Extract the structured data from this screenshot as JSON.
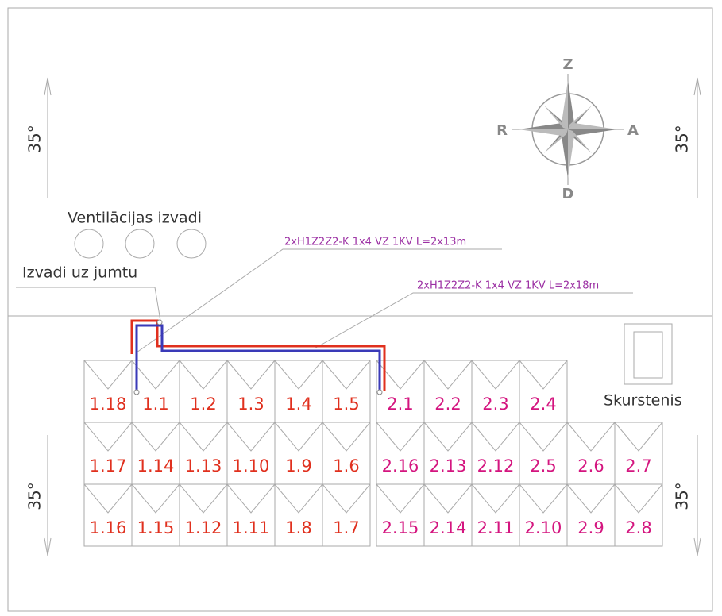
{
  "compass": {
    "north": "Z",
    "east": "A",
    "south": "D",
    "west": "R"
  },
  "angles": [
    "35°",
    "35°",
    "35°",
    "35°"
  ],
  "ventilation_label": "Ventilācijas izvadi",
  "roof_outlet_label": "Izvadi uz jumtu",
  "chimney_label": "Skurstenis",
  "cables": [
    "2xH1Z2Z2-K 1x4 VZ 1KV L=2x13m",
    "2xH1Z2Z2-K 1x4 VZ 1KV L=2x18m"
  ],
  "panel_groups": [
    {
      "color": "#e0301e",
      "rows": [
        [
          "1.18",
          "1.1",
          "1.2",
          "1.3",
          "1.4",
          "1.5"
        ],
        [
          "1.17",
          "1.14",
          "1.13",
          "1.10",
          "1.9",
          "1.6"
        ],
        [
          "1.16",
          "1.15",
          "1.12",
          "1.11",
          "1.8",
          "1.7"
        ]
      ]
    },
    {
      "color": "#d4157f",
      "rows": [
        [
          "2.1",
          "2.2",
          "2.3",
          "2.4"
        ],
        [
          "2.16",
          "2.13",
          "2.12",
          "2.5",
          "2.6",
          "2.7"
        ],
        [
          "2.15",
          "2.14",
          "2.11",
          "2.10",
          "2.9",
          "2.8"
        ]
      ]
    }
  ]
}
